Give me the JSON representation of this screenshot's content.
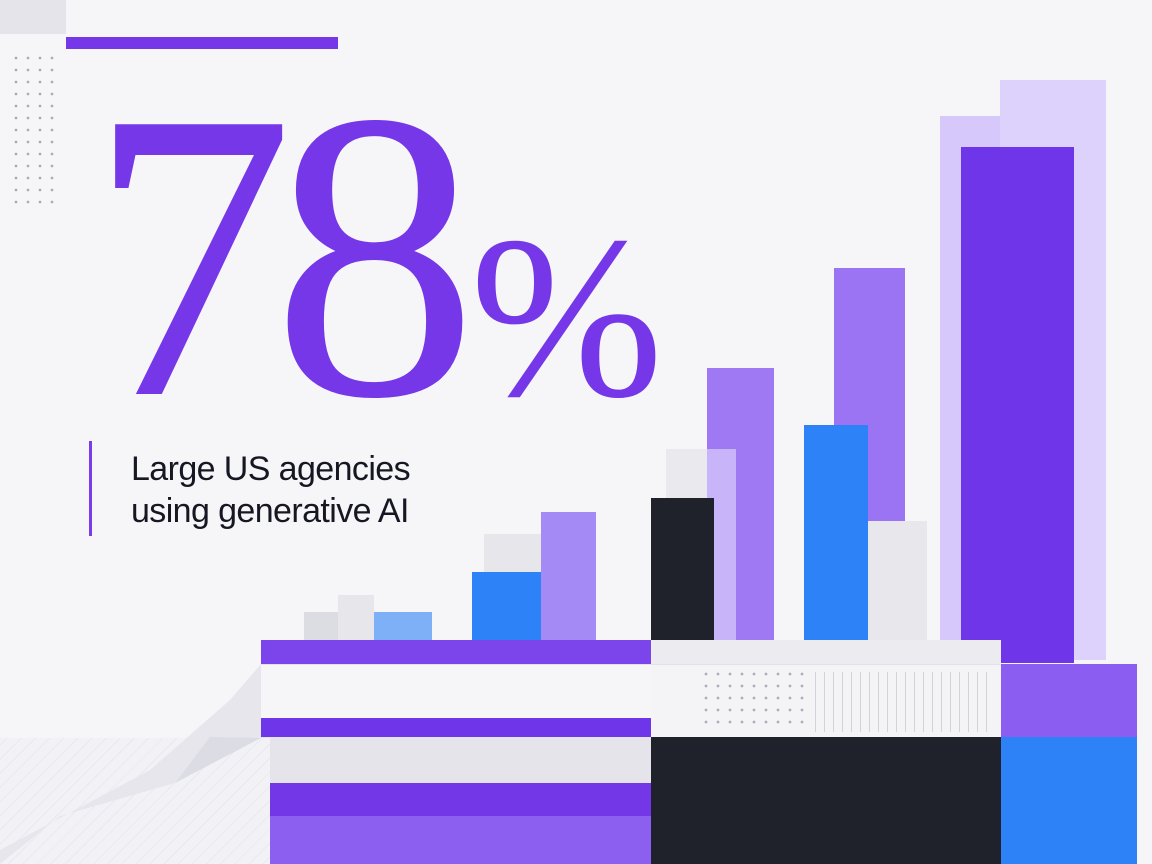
{
  "headline": {
    "number": "78",
    "percent_sign": "%",
    "value_percent": 78
  },
  "caption": {
    "line1": "Large US agencies",
    "line2": "using generative AI"
  },
  "colors": {
    "background": "#f6f6f9",
    "purple": "#6f35e8",
    "purple_medium": "#8b62f2",
    "purple_light": "#a98ff5",
    "lavender": "#d5c7f8",
    "blue": "#2e82f8",
    "blue_light": "#7eb0f8",
    "black": "#20222b",
    "grey_light": "#e4e4ea"
  }
}
